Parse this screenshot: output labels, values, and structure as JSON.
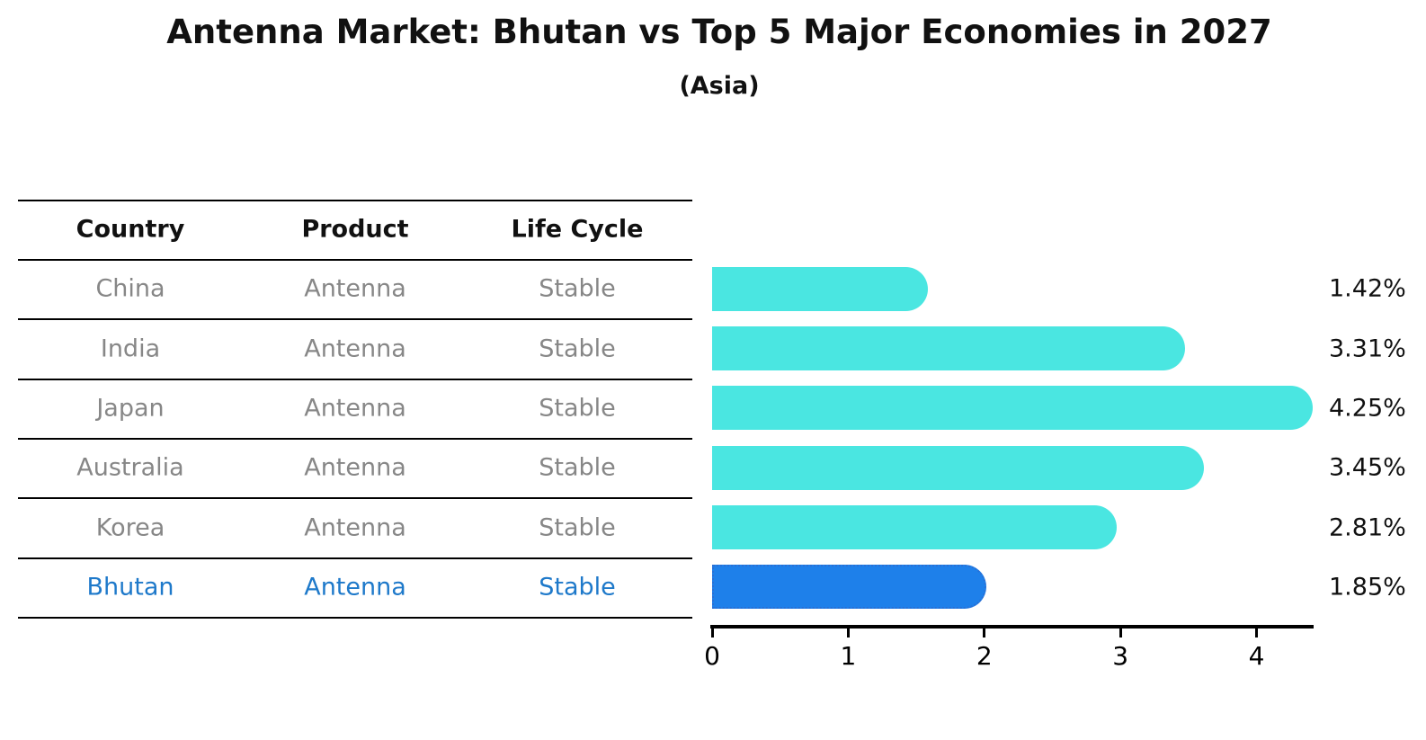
{
  "title": "Antenna Market: Bhutan vs Top 5 Major Economies in 2027",
  "subtitle": "(Asia)",
  "table": {
    "headers": [
      "Country",
      "Product",
      "Life Cycle"
    ],
    "rows": [
      {
        "country": "China",
        "product": "Antenna",
        "life_cycle": "Stable",
        "highlight": false
      },
      {
        "country": "India",
        "product": "Antenna",
        "life_cycle": "Stable",
        "highlight": false
      },
      {
        "country": "Japan",
        "product": "Antenna",
        "life_cycle": "Stable",
        "highlight": false
      },
      {
        "country": "Australia",
        "product": "Antenna",
        "life_cycle": "Stable",
        "highlight": false
      },
      {
        "country": "Korea",
        "product": "Antenna",
        "life_cycle": "Stable",
        "highlight": false
      },
      {
        "country": "Bhutan",
        "product": "Antenna",
        "life_cycle": "Stable",
        "highlight": true
      }
    ]
  },
  "chart_data": {
    "type": "bar",
    "orientation": "horizontal",
    "title": "Antenna Market: Bhutan vs Top 5 Major Economies in 2027",
    "subtitle": "(Asia)",
    "categories": [
      "China",
      "India",
      "Japan",
      "Australia",
      "Korea",
      "Bhutan"
    ],
    "values": [
      1.42,
      3.31,
      4.25,
      3.45,
      2.81,
      1.85
    ],
    "value_labels": [
      "1.42%",
      "3.31%",
      "4.25%",
      "3.45%",
      "2.81%",
      "1.85%"
    ],
    "highlight_category": "Bhutan",
    "xlim": [
      0,
      4.45
    ],
    "x_ticks": [
      "0",
      "1",
      "2",
      "3",
      "4"
    ],
    "xlabel": "",
    "ylabel": "",
    "grid": false,
    "legend": "none"
  },
  "colors": {
    "bar": "#4AE6E1",
    "highlight_bar": "#1E80EA",
    "highlight_bar_border": "#2A6FD4",
    "row_text": "#878787",
    "highlight_text": "#1E79CA",
    "header_text": "#111111",
    "title_text": "#111111",
    "value_label_text": "#111111",
    "axis": "#000000",
    "table_line": "#000000",
    "background": "#FFFFFF"
  }
}
